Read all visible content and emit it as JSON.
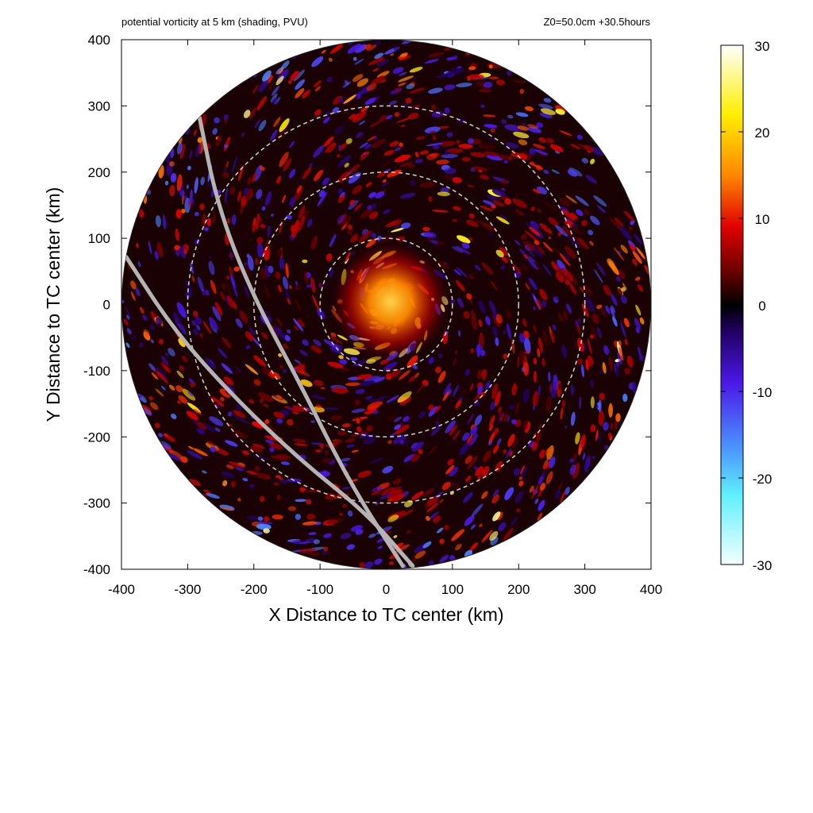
{
  "header": {
    "left": "potential vorticity at 5 km (shading, PVU)",
    "right": "Z0=50.0cm  +30.5hours"
  },
  "chart_data": {
    "type": "heatmap",
    "title": "potential vorticity at 5 km (shading, PVU)",
    "subtitle": "Z0=50.0cm  +30.5hours",
    "xlabel": "X Distance to TC center (km)",
    "ylabel": "Y Distance to TC center (km)",
    "xlim": [
      -400,
      400
    ],
    "ylim": [
      -400,
      400
    ],
    "xticks": [
      -400,
      -300,
      -200,
      -100,
      0,
      100,
      200,
      300,
      400
    ],
    "yticks": [
      -400,
      -300,
      -200,
      -100,
      0,
      100,
      200,
      300,
      400
    ],
    "domain_radius_km": 400,
    "range_rings_km": [
      100,
      200,
      300
    ],
    "grid": false,
    "colorbar": {
      "label": "",
      "min": -30,
      "max": 30,
      "ticks": [
        30,
        20,
        10,
        0,
        -10,
        -20,
        -30
      ],
      "colorstops": [
        {
          "value": -30,
          "color": "#f4ffff"
        },
        {
          "value": -22,
          "color": "#5ff0ff"
        },
        {
          "value": -16,
          "color": "#4a8cff"
        },
        {
          "value": -9,
          "color": "#4a18e8"
        },
        {
          "value": -3,
          "color": "#200060"
        },
        {
          "value": 0,
          "color": "#000000"
        },
        {
          "value": 4,
          "color": "#6e0000"
        },
        {
          "value": 9,
          "color": "#e00000"
        },
        {
          "value": 15,
          "color": "#ff8800"
        },
        {
          "value": 22,
          "color": "#ffee00"
        },
        {
          "value": 30,
          "color": "#ffffff"
        }
      ]
    },
    "track_lines": [
      {
        "color": "#b4b4b4",
        "points": [
          [
            -282,
            282
          ],
          [
            -255,
            150
          ],
          [
            -205,
            20
          ],
          [
            -130,
            -120
          ],
          [
            -55,
            -270
          ],
          [
            25,
            -395
          ]
        ]
      },
      {
        "color": "#b4b4b4",
        "points": [
          [
            -393,
            72
          ],
          [
            -320,
            -40
          ],
          [
            -230,
            -140
          ],
          [
            -130,
            -235
          ],
          [
            -30,
            -315
          ],
          [
            40,
            -395
          ]
        ]
      }
    ]
  }
}
